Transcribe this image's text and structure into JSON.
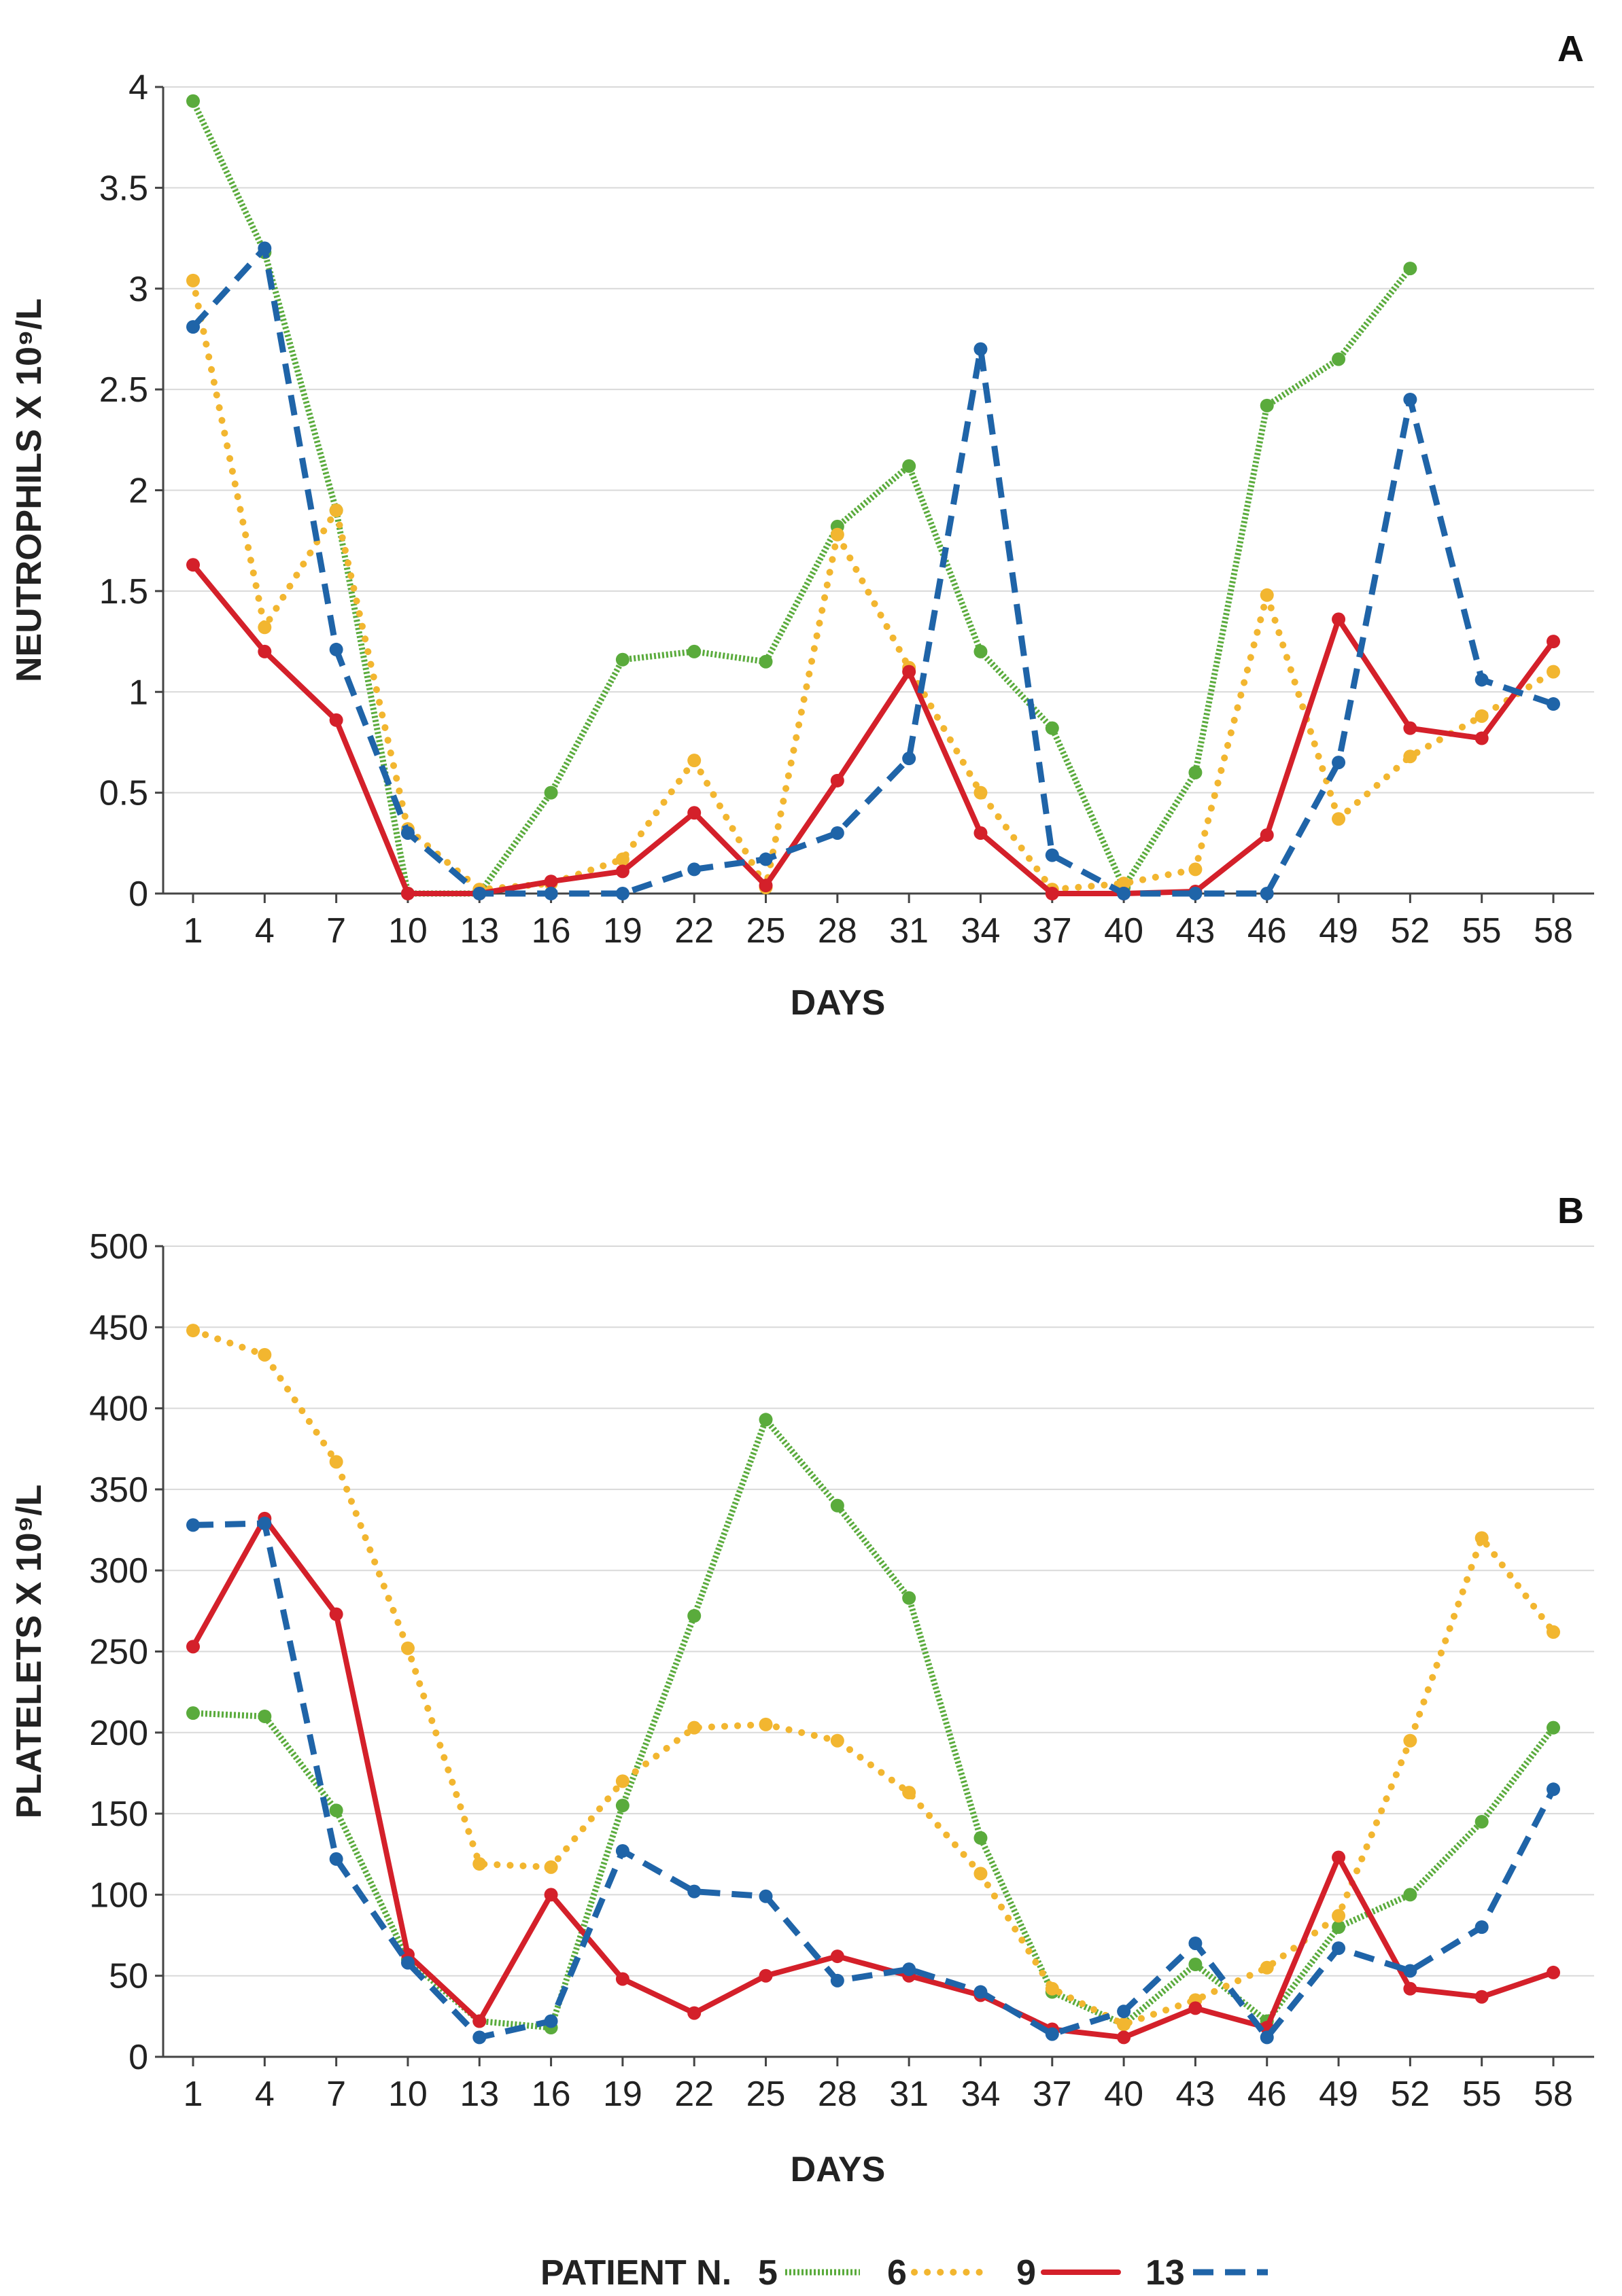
{
  "chart_data": [
    {
      "type": "line",
      "panel_label": "A",
      "title": "",
      "xlabel": "DAYS",
      "ylabel": "NEUTROPHILS X 10⁹/L",
      "x": [
        1,
        4,
        7,
        10,
        13,
        16,
        19,
        22,
        25,
        28,
        31,
        34,
        37,
        40,
        43,
        46,
        49,
        52,
        55,
        58
      ],
      "ylim": [
        0,
        4
      ],
      "yticks": [
        0,
        0.5,
        1,
        1.5,
        2,
        2.5,
        3,
        3.5,
        4
      ],
      "grid": true,
      "series": [
        {
          "name": "5",
          "color": "#5aab3c",
          "style": "dotted",
          "values": [
            3.93,
            3.18,
            1.9,
            0,
            0,
            0.5,
            1.16,
            1.2,
            1.15,
            1.82,
            2.12,
            1.2,
            0.82,
            0.03,
            0.6,
            2.42,
            2.65,
            3.1,
            null,
            null
          ]
        },
        {
          "name": "6",
          "color": "#f2b630",
          "style": "dotted-round",
          "values": [
            3.04,
            1.32,
            1.9,
            0.32,
            0.02,
            0.05,
            0.17,
            0.66,
            0.03,
            1.78,
            1.12,
            0.5,
            0.02,
            0.05,
            0.12,
            1.48,
            0.37,
            0.68,
            0.88,
            1.1
          ]
        },
        {
          "name": "9",
          "color": "#d4202a",
          "style": "solid",
          "values": [
            1.63,
            1.2,
            0.86,
            0,
            0,
            0.06,
            0.11,
            0.4,
            0.04,
            0.56,
            1.1,
            0.3,
            0,
            0,
            0.01,
            0.29,
            1.36,
            0.82,
            0.77,
            1.25
          ]
        },
        {
          "name": "13",
          "color": "#1f64a8",
          "style": "dashed",
          "values": [
            2.81,
            3.2,
            1.21,
            0.3,
            0,
            0,
            0,
            0.12,
            0.17,
            0.3,
            0.67,
            2.7,
            0.19,
            0,
            0,
            0,
            0.65,
            2.45,
            1.06,
            0.94
          ]
        }
      ]
    },
    {
      "type": "line",
      "panel_label": "B",
      "title": "",
      "xlabel": "DAYS",
      "ylabel": "PLATELETS X 10⁹/L",
      "x": [
        1,
        4,
        7,
        10,
        13,
        16,
        19,
        22,
        25,
        28,
        31,
        34,
        37,
        40,
        43,
        46,
        49,
        52,
        55,
        58
      ],
      "ylim": [
        0,
        500
      ],
      "yticks": [
        0,
        50,
        100,
        150,
        200,
        250,
        300,
        350,
        400,
        450,
        500
      ],
      "grid": true,
      "series": [
        {
          "name": "5",
          "color": "#5aab3c",
          "style": "dotted",
          "values": [
            212,
            210,
            152,
            60,
            22,
            18,
            155,
            272,
            393,
            340,
            283,
            135,
            40,
            20,
            57,
            22,
            80,
            100,
            145,
            203
          ]
        },
        {
          "name": "6",
          "color": "#f2b630",
          "style": "dotted-round",
          "values": [
            448,
            433,
            367,
            252,
            119,
            117,
            170,
            203,
            205,
            195,
            163,
            113,
            42,
            20,
            35,
            55,
            87,
            195,
            320,
            262
          ]
        },
        {
          "name": "9",
          "color": "#d4202a",
          "style": "solid",
          "values": [
            253,
            332,
            273,
            63,
            22,
            100,
            48,
            27,
            50,
            62,
            50,
            38,
            17,
            12,
            30,
            18,
            123,
            42,
            37,
            52
          ]
        },
        {
          "name": "13",
          "color": "#1f64a8",
          "style": "dashed",
          "values": [
            328,
            329,
            122,
            58,
            12,
            22,
            127,
            102,
            99,
            47,
            54,
            40,
            14,
            28,
            70,
            12,
            67,
            53,
            80,
            165
          ]
        }
      ]
    }
  ],
  "legend": {
    "title": "PATIENT N.",
    "placement": "bottom-center"
  }
}
